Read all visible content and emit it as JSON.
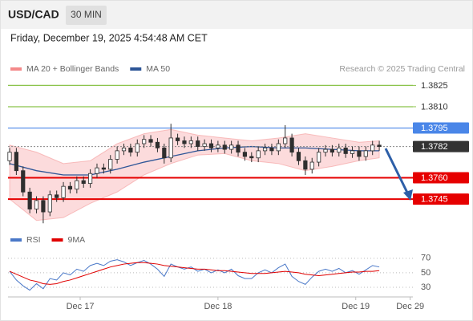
{
  "header": {
    "symbol": "USD/CAD",
    "timeframe": "30 MIN",
    "datetime": "Friday, December 19, 2025 4:54:48 AM CET"
  },
  "chart_data": [
    {
      "type": "candlestick",
      "source": "Research © 2025 Trading Central",
      "xlim": [
        0,
        60
      ],
      "xticks": [
        {
          "value": 10.5,
          "label": "Dec 17"
        },
        {
          "value": 31,
          "label": "Dec 18"
        },
        {
          "value": 51.5,
          "label": "Dec 19"
        },
        {
          "value": 59.6,
          "label": "Dec 29"
        }
      ],
      "ylim": [
        1.3727,
        1.3832
      ],
      "candle_color": "#2e2e2e",
      "open": [
        1.3772,
        1.3778,
        1.3765,
        1.375,
        1.3738,
        1.3744,
        1.3736,
        1.3748,
        1.3746,
        1.3754,
        1.3752,
        1.3758,
        1.3756,
        1.3763,
        1.3767,
        1.3766,
        1.3773,
        1.3779,
        1.3781,
        1.3778,
        1.3784,
        1.3787,
        1.3785,
        1.3781,
        1.3774,
        1.3788,
        1.3786,
        1.3784,
        1.3786,
        1.3782,
        1.3784,
        1.3781,
        1.3783,
        1.378,
        1.3783,
        1.3778,
        1.3775,
        1.3774,
        1.3779,
        1.3781,
        1.3779,
        1.3784,
        1.3788,
        1.3778,
        1.3772,
        1.3766,
        1.3771,
        1.3778,
        1.378,
        1.3778,
        1.3781,
        1.3777,
        1.3779,
        1.3775,
        1.3779,
        1.3783
      ],
      "high": [
        1.3781,
        1.3781,
        1.3768,
        1.3753,
        1.3747,
        1.3747,
        1.3751,
        1.3751,
        1.3757,
        1.3757,
        1.3761,
        1.3761,
        1.3766,
        1.377,
        1.377,
        1.3776,
        1.3782,
        1.3784,
        1.3784,
        1.3787,
        1.379,
        1.379,
        1.3788,
        1.3784,
        1.3798,
        1.3791,
        1.3789,
        1.3789,
        1.3789,
        1.3787,
        1.3787,
        1.3786,
        1.3786,
        1.3786,
        1.3786,
        1.3781,
        1.3778,
        1.3782,
        1.3784,
        1.3784,
        1.3787,
        1.3797,
        1.3791,
        1.3781,
        1.3775,
        1.3774,
        1.3781,
        1.3783,
        1.3783,
        1.3784,
        1.3784,
        1.3782,
        1.3782,
        1.3782,
        1.3786,
        1.3786
      ],
      "low": [
        1.3769,
        1.3762,
        1.3747,
        1.3735,
        1.3735,
        1.3728,
        1.3733,
        1.3743,
        1.3743,
        1.3749,
        1.3749,
        1.3753,
        1.3753,
        1.376,
        1.3763,
        1.3763,
        1.377,
        1.3776,
        1.3775,
        1.3775,
        1.3781,
        1.3782,
        1.3778,
        1.377,
        1.3771,
        1.3783,
        1.3781,
        1.3781,
        1.3779,
        1.3779,
        1.3778,
        1.3778,
        1.3777,
        1.3777,
        1.3775,
        1.3772,
        1.3771,
        1.3771,
        1.3776,
        1.3776,
        1.3776,
        1.3781,
        1.3775,
        1.3769,
        1.3762,
        1.3763,
        1.3768,
        1.3775,
        1.3775,
        1.3775,
        1.3774,
        1.3774,
        1.3772,
        1.3772,
        1.3776,
        1.3779
      ],
      "close": [
        1.3778,
        1.3765,
        1.375,
        1.3738,
        1.3744,
        1.3736,
        1.3748,
        1.3746,
        1.3754,
        1.3752,
        1.3758,
        1.3756,
        1.3763,
        1.3767,
        1.3766,
        1.3773,
        1.3779,
        1.3781,
        1.3778,
        1.3784,
        1.3787,
        1.3785,
        1.3781,
        1.3774,
        1.3788,
        1.3786,
        1.3784,
        1.3786,
        1.3782,
        1.3784,
        1.3781,
        1.3783,
        1.378,
        1.3783,
        1.3778,
        1.3775,
        1.3774,
        1.3779,
        1.3781,
        1.3779,
        1.3784,
        1.3788,
        1.3778,
        1.3772,
        1.3766,
        1.3771,
        1.3778,
        1.378,
        1.3778,
        1.3781,
        1.3777,
        1.3779,
        1.3775,
        1.3779,
        1.3783,
        1.3782
      ],
      "series": [
        {
          "name": "MA 20 + Bollinger Bands",
          "color": "#f4898a",
          "x": [
            0,
            4,
            8,
            12,
            16,
            20,
            24,
            28,
            32,
            36,
            40,
            44,
            48,
            52,
            55
          ],
          "upper": [
            1.3783,
            1.3778,
            1.377,
            1.3772,
            1.3784,
            1.3791,
            1.3794,
            1.379,
            1.3788,
            1.3786,
            1.3788,
            1.3791,
            1.3788,
            1.3785,
            1.3786
          ],
          "lower": [
            1.3745,
            1.373,
            1.3732,
            1.3742,
            1.375,
            1.3762,
            1.377,
            1.3776,
            1.3777,
            1.3772,
            1.377,
            1.3765,
            1.3768,
            1.3772,
            1.3774
          ]
        },
        {
          "name": "MA 50",
          "color": "#2d5597",
          "x": [
            0,
            4,
            8,
            12,
            16,
            20,
            24,
            28,
            32,
            36,
            40,
            44,
            48,
            52,
            55
          ],
          "values": [
            1.377,
            1.3765,
            1.3762,
            1.3762,
            1.3766,
            1.3771,
            1.3775,
            1.3779,
            1.3781,
            1.3782,
            1.3781,
            1.3781,
            1.378,
            1.3779,
            1.3779
          ]
        }
      ],
      "levels": [
        {
          "value": 1.3825,
          "label": "1.3825",
          "color": "#8bc34a",
          "boxed": false,
          "dashed": false
        },
        {
          "value": 1.381,
          "label": "1.3810",
          "color": "#8bc34a",
          "boxed": false,
          "dashed": false
        },
        {
          "value": 1.3795,
          "label": "1.3795",
          "color": "#4a86e8",
          "boxed": true,
          "dashed": false
        },
        {
          "value": 1.3782,
          "label": "1.3782",
          "color": "#333333",
          "boxed": true,
          "dashed": true
        },
        {
          "value": 1.376,
          "label": "1.3760",
          "color": "#e60000",
          "boxed": true,
          "dashed": false
        },
        {
          "value": 1.3745,
          "label": "1.3745",
          "color": "#e60000",
          "boxed": true,
          "dashed": false
        }
      ]
    },
    {
      "type": "line",
      "xlim": [
        0,
        60
      ],
      "ylim": [
        20,
        82
      ],
      "yticks": [
        30,
        50,
        70
      ],
      "grid": true,
      "series": [
        {
          "name": "RSI",
          "color": "#4a78c8",
          "values": [
            52,
            40,
            32,
            26,
            35,
            28,
            42,
            40,
            50,
            47,
            55,
            52,
            60,
            63,
            60,
            66,
            68,
            65,
            60,
            64,
            67,
            62,
            55,
            45,
            62,
            58,
            55,
            58,
            52,
            55,
            50,
            54,
            50,
            55,
            46,
            42,
            42,
            50,
            54,
            50,
            57,
            62,
            45,
            38,
            34,
            44,
            52,
            55,
            52,
            56,
            50,
            53,
            48,
            54,
            60,
            58
          ]
        },
        {
          "name": "9MA",
          "color": "#e00000",
          "values": [
            52,
            48,
            44,
            40,
            38,
            35,
            34,
            35,
            38,
            40,
            43,
            46,
            49,
            52,
            55,
            58,
            60,
            62,
            63,
            64,
            64,
            63,
            62,
            60,
            59,
            58,
            57,
            56,
            55,
            55,
            54,
            53,
            53,
            52,
            51,
            50,
            49,
            49,
            49,
            50,
            51,
            52,
            51,
            50,
            48,
            47,
            46,
            47,
            48,
            49,
            50,
            51,
            51,
            52,
            52,
            53
          ]
        }
      ]
    }
  ]
}
